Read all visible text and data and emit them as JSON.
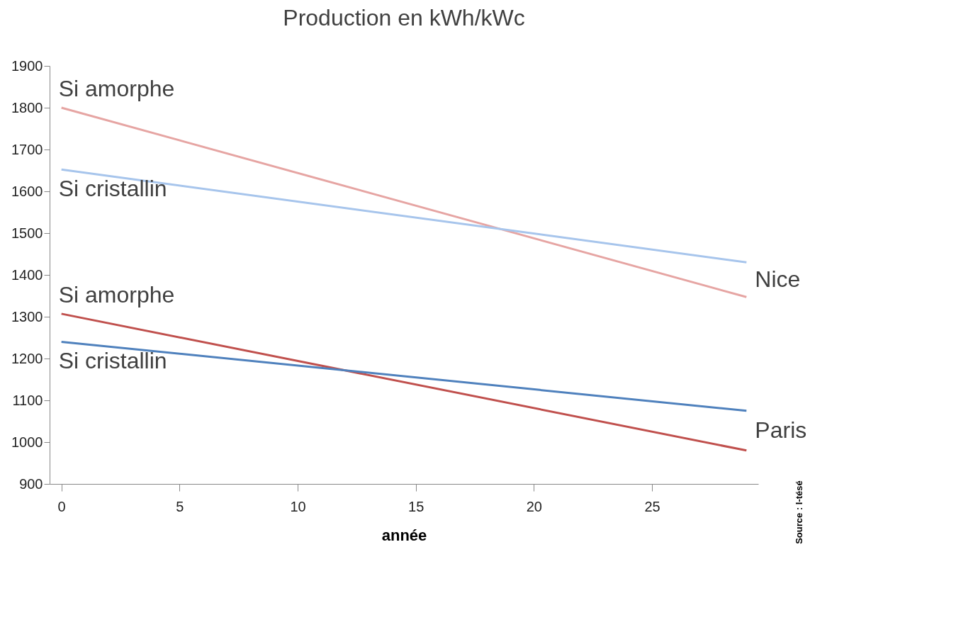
{
  "chart_data": {
    "type": "line",
    "title": "Production en kWh/kWc",
    "xlabel": "année",
    "x": [
      0,
      29
    ],
    "series": [
      {
        "name": "Si amorphe",
        "color": "#e6a5a3",
        "values": [
          1800,
          1347
        ]
      },
      {
        "name": "Si cristallin",
        "color": "#a7c5ec",
        "values": [
          1652,
          1430
        ]
      },
      {
        "name": "Si amorphe",
        "color": "#c0504d",
        "values": [
          1307,
          980
        ]
      },
      {
        "name": "Si cristallin",
        "color": "#4f81bd",
        "values": [
          1240,
          1075
        ]
      }
    ],
    "xlim": [
      -0.5,
      29.5
    ],
    "xticks": [
      0,
      5,
      10,
      15,
      20,
      25
    ],
    "ylim": [
      900,
      1900
    ],
    "yticks": [
      900,
      1000,
      1100,
      1200,
      1300,
      1400,
      1500,
      1600,
      1700,
      1800,
      1900
    ],
    "grid": false,
    "marker": "none",
    "line_style": "solid",
    "annotations": [
      "Nice",
      "Paris",
      "Source : I-tésé"
    ]
  }
}
